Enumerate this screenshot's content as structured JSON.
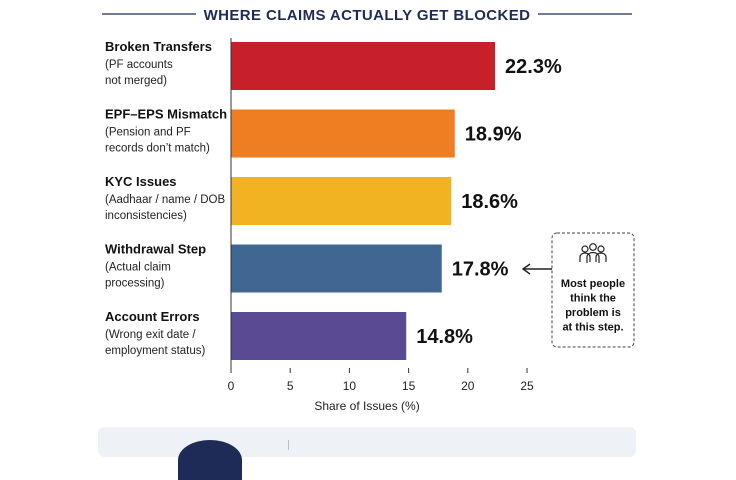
{
  "title": "WHERE CLAIMS ACTUALLY GET BLOCKED",
  "chart_data": {
    "type": "bar",
    "orientation": "horizontal",
    "categories": [
      {
        "label": "Broken Transfers",
        "sub": [
          "(PF accounts",
          "not merged)"
        ],
        "value": 22.3,
        "value_label": "22.3%",
        "color": "#c8202a"
      },
      {
        "label": "EPF–EPS Mismatch",
        "sub": [
          "(Pension and PF",
          "records don’t match)"
        ],
        "value": 18.9,
        "value_label": "18.9%",
        "color": "#ef7d22"
      },
      {
        "label": "KYC Issues",
        "sub": [
          "(Aadhaar / name / DOB",
          "inconsistencies)"
        ],
        "value": 18.6,
        "value_label": "18.6%",
        "color": "#f2b322"
      },
      {
        "label": "Withdrawal Step",
        "sub": [
          "(Actual claim",
          "processing)"
        ],
        "value": 17.8,
        "value_label": "17.8%",
        "color": "#3f6792"
      },
      {
        "label": "Account Errors",
        "sub": [
          "(Wrong exit date /",
          "employment status)"
        ],
        "value": 14.8,
        "value_label": "14.8%",
        "color": "#5a4a93"
      }
    ],
    "xlabel": "Share of Issues (%)",
    "ylabel": "",
    "xlim": [
      0,
      25
    ],
    "xticks": [
      0,
      5,
      10,
      15,
      20,
      25
    ],
    "grid": false,
    "legend": "none"
  },
  "callout": {
    "lines": [
      "Most people",
      "think the",
      "problem is",
      "at this step."
    ],
    "icon": "people-group-icon",
    "target_category_index": 3
  }
}
